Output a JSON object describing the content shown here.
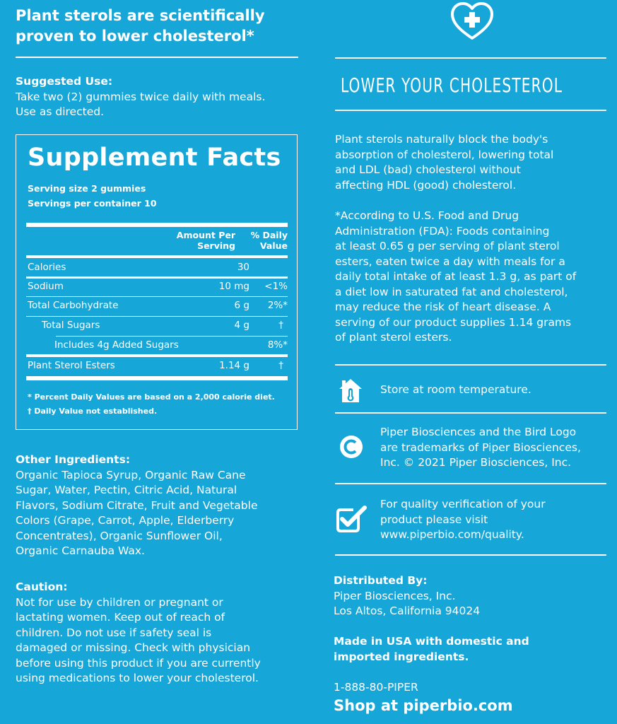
{
  "left": {
    "headline": [
      "Plant sterols are scientifically",
      "proven to lower cholesterol*"
    ],
    "suggested_use": {
      "heading": "Suggested Use:",
      "lines": [
        "Take two (2) gummies twice daily with meals.",
        "Use as directed."
      ]
    },
    "supplement_facts": {
      "title": "Supplement Facts",
      "serving_size": "Serving size 2 gummies",
      "servings_per_container": "Servings per container 10",
      "col_amount": [
        "Amount Per",
        "Serving"
      ],
      "col_dv": [
        "% Daily",
        "Value"
      ],
      "rows": [
        {
          "name": "Calories",
          "amount": "30",
          "dv": ""
        },
        {
          "name": "Sodium",
          "amount": "10 mg",
          "dv": "<1%"
        },
        {
          "name": "Total Carbohydrate",
          "amount": "6 g",
          "dv": "2%*"
        },
        {
          "name": "Total Sugars",
          "amount": "4 g",
          "dv": "†"
        },
        {
          "name": "Includes 4g Added Sugars",
          "amount": "",
          "dv": "8%*"
        },
        {
          "name": "Plant Sterol Esters",
          "amount": "1.14 g",
          "dv": "†"
        }
      ],
      "footnote_1": "* Percent Daily Values are based on a 2,000 calorie diet.",
      "footnote_2": "† Daily Value not established."
    },
    "other_ingredients": {
      "heading": "Other Ingredients:",
      "lines": [
        "Organic Tapioca Syrup, Organic Raw Cane",
        "Sugar, Water, Pectin, Citric Acid, Natural",
        "Flavors, Sodium Citrate, Fruit and Vegetable",
        "Colors (Grape, Carrot, Apple, Elderberry",
        "Concentrates), Organic Sunflower Oil,",
        "Organic Carnauba Wax."
      ]
    },
    "caution": {
      "heading": "Caution:",
      "lines": [
        "Not for use by children or pregnant or",
        "lactating women. Keep out of reach of",
        "children. Do not use if safety seal is",
        "damaged or missing. Check with physician",
        "before using this product if you are currently",
        "using medications to lower your cholesterol."
      ]
    }
  },
  "right": {
    "title": "LOWER YOUR CHOLESTEROL",
    "intro_lines": [
      "Plant sterols naturally block the body's",
      "absorption of cholesterol, lowering total",
      "and LDL (bad) cholesterol without",
      "affecting HDL (good) cholesterol."
    ],
    "fda_lines": [
      "*According to U.S. Food and Drug",
      "Administration (FDA):  Foods containing",
      "at least 0.65 g per serving of plant sterol",
      "esters, eaten twice a day with meals for a",
      "daily total intake of at least 1.3 g, as part of",
      "a diet low in saturated fat and cholesterol,",
      "may reduce the risk of heart disease. A",
      "serving of our product supplies 1.14 grams",
      "of plant sterol esters."
    ],
    "storage": "Store at room temperature.",
    "trademark_lines": [
      "Piper Biosciences and the Bird Logo",
      "are trademarks of Piper Biosciences,",
      "Inc. © 2021 Piper Biosciences, Inc."
    ],
    "quality_lines": [
      "For quality verification of your",
      "product please visit",
      "www.piperbio.com/quality."
    ],
    "distributed": {
      "heading": "Distributed By:",
      "lines": [
        "Piper Biosciences, Inc.",
        "Los Altos, California 94024"
      ]
    },
    "made_in_lines": [
      "Made in USA with domestic and",
      "imported ingredients."
    ],
    "phone": "1-888-80-PIPER",
    "shop": "Shop at piperbio.com",
    "icons": [
      "heart-plus-icon",
      "house-thermometer-icon",
      "copyright-icon",
      "checkmark-badge-icon"
    ]
  }
}
